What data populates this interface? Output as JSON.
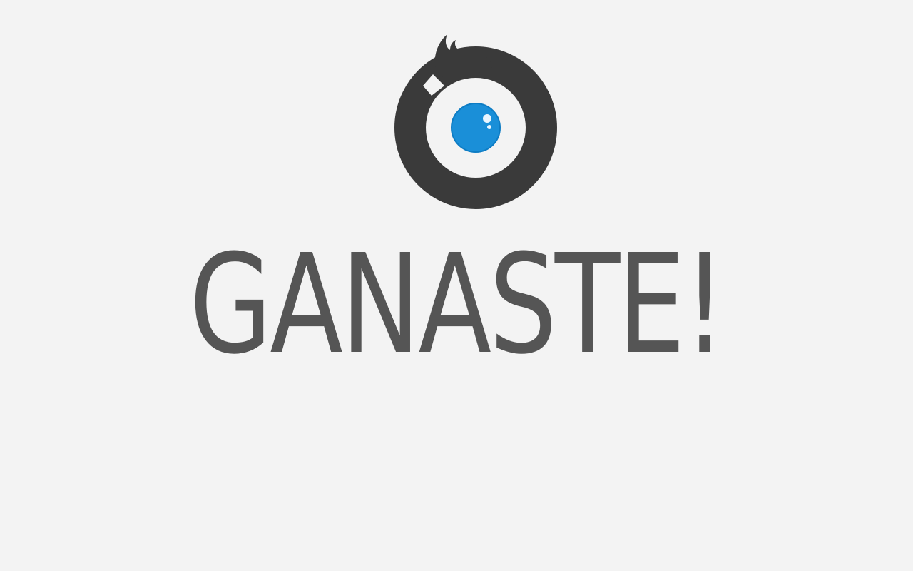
{
  "screen": {
    "headline": "GANASTE!",
    "logo": {
      "icon": "eye-logo-icon",
      "ring_color": "#3a3a3a",
      "pupil_color": "#1a8fd8"
    },
    "text_color": "#555555",
    "background_color": "#f3f3f3"
  }
}
